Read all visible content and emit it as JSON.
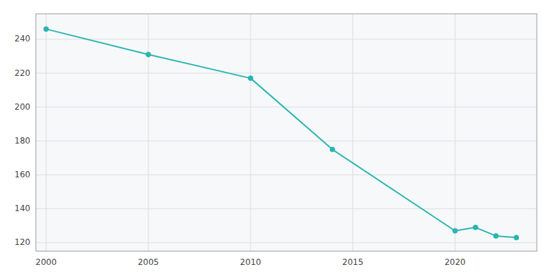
{
  "chart_data": {
    "type": "line",
    "x": [
      2000,
      2005,
      2010,
      2014,
      2020,
      2021,
      2022,
      2023
    ],
    "values": [
      246,
      231,
      217,
      175,
      127,
      129,
      124,
      123
    ],
    "color": "#2ab5b0",
    "marker": "circle",
    "xlim": [
      1999.5,
      2024
    ],
    "ylim": [
      115,
      255
    ],
    "xticks": [
      2000,
      2005,
      2010,
      2015,
      2020
    ],
    "yticks": [
      120,
      140,
      160,
      180,
      200,
      220,
      240
    ],
    "grid": true
  }
}
